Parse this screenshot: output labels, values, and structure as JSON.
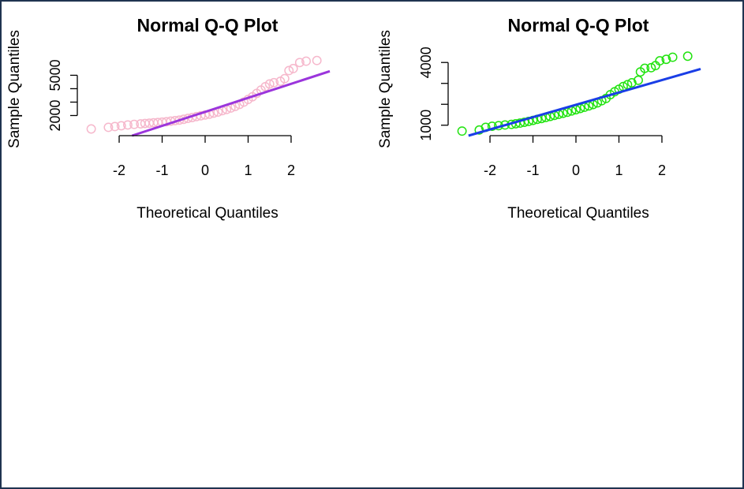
{
  "chart_data": [
    {
      "type": "scatter",
      "title": "Normal Q-Q Plot",
      "xlabel": "Theoretical Quantiles",
      "ylabel": "Sample Quantiles",
      "xlim": [
        -2.9,
        2.9
      ],
      "ylim": [
        500,
        7200
      ],
      "x_ticks": [
        -2,
        -1,
        0,
        1,
        2
      ],
      "y_ticks": [
        2000,
        5000
      ],
      "y_minor_ticks": [
        2000,
        3000,
        4000,
        5000
      ],
      "point_color": "#f6b8cc",
      "line_color": "#9b35dc",
      "reference_line": {
        "x": [
          -1.7,
          2.9
        ],
        "y": [
          500,
          5300
        ]
      },
      "points": [
        {
          "x": -2.65,
          "y": 1000
        },
        {
          "x": -2.25,
          "y": 1120
        },
        {
          "x": -2.1,
          "y": 1180
        },
        {
          "x": -1.95,
          "y": 1240
        },
        {
          "x": -1.8,
          "y": 1300
        },
        {
          "x": -1.65,
          "y": 1340
        },
        {
          "x": -1.5,
          "y": 1380
        },
        {
          "x": -1.4,
          "y": 1410
        },
        {
          "x": -1.3,
          "y": 1430
        },
        {
          "x": -1.2,
          "y": 1460
        },
        {
          "x": -1.1,
          "y": 1480
        },
        {
          "x": -1.0,
          "y": 1510
        },
        {
          "x": -0.9,
          "y": 1540
        },
        {
          "x": -0.8,
          "y": 1580
        },
        {
          "x": -0.7,
          "y": 1620
        },
        {
          "x": -0.6,
          "y": 1660
        },
        {
          "x": -0.5,
          "y": 1720
        },
        {
          "x": -0.4,
          "y": 1790
        },
        {
          "x": -0.3,
          "y": 1850
        },
        {
          "x": -0.2,
          "y": 1920
        },
        {
          "x": -0.1,
          "y": 1980
        },
        {
          "x": 0.0,
          "y": 2040
        },
        {
          "x": 0.1,
          "y": 2100
        },
        {
          "x": 0.2,
          "y": 2180
        },
        {
          "x": 0.3,
          "y": 2260
        },
        {
          "x": 0.4,
          "y": 2360
        },
        {
          "x": 0.5,
          "y": 2450
        },
        {
          "x": 0.6,
          "y": 2560
        },
        {
          "x": 0.7,
          "y": 2680
        },
        {
          "x": 0.8,
          "y": 2830
        },
        {
          "x": 0.9,
          "y": 3000
        },
        {
          "x": 1.0,
          "y": 3200
        },
        {
          "x": 1.1,
          "y": 3400
        },
        {
          "x": 1.2,
          "y": 3650
        },
        {
          "x": 1.3,
          "y": 3900
        },
        {
          "x": 1.4,
          "y": 4150
        },
        {
          "x": 1.5,
          "y": 4350
        },
        {
          "x": 1.6,
          "y": 4450
        },
        {
          "x": 1.75,
          "y": 4550
        },
        {
          "x": 1.85,
          "y": 4750
        },
        {
          "x": 1.95,
          "y": 5350
        },
        {
          "x": 2.05,
          "y": 5500
        },
        {
          "x": 2.2,
          "y": 5950
        },
        {
          "x": 2.35,
          "y": 6050
        },
        {
          "x": 2.6,
          "y": 6100
        }
      ]
    },
    {
      "type": "scatter",
      "title": "Normal Q-Q Plot",
      "xlabel": "Theoretical Quantiles",
      "ylabel": "Sample Quantiles",
      "xlim": [
        -2.9,
        2.9
      ],
      "ylim": [
        500,
        4800
      ],
      "x_ticks": [
        -2,
        -1,
        0,
        1,
        2
      ],
      "y_ticks": [
        1000,
        4000
      ],
      "y_minor_ticks": [
        1000,
        2000,
        3000,
        4000
      ],
      "point_color": "#22e310",
      "line_color": "#1a3ee6",
      "reference_line": {
        "x": [
          -2.5,
          2.9
        ],
        "y": [
          500,
          3690
        ]
      },
      "points": [
        {
          "x": -2.65,
          "y": 720
        },
        {
          "x": -2.25,
          "y": 770
        },
        {
          "x": -2.1,
          "y": 900
        },
        {
          "x": -1.95,
          "y": 950
        },
        {
          "x": -1.8,
          "y": 980
        },
        {
          "x": -1.65,
          "y": 1010
        },
        {
          "x": -1.5,
          "y": 1040
        },
        {
          "x": -1.4,
          "y": 1070
        },
        {
          "x": -1.3,
          "y": 1100
        },
        {
          "x": -1.2,
          "y": 1140
        },
        {
          "x": -1.1,
          "y": 1180
        },
        {
          "x": -1.0,
          "y": 1230
        },
        {
          "x": -0.9,
          "y": 1280
        },
        {
          "x": -0.8,
          "y": 1320
        },
        {
          "x": -0.7,
          "y": 1370
        },
        {
          "x": -0.6,
          "y": 1420
        },
        {
          "x": -0.5,
          "y": 1470
        },
        {
          "x": -0.4,
          "y": 1520
        },
        {
          "x": -0.3,
          "y": 1570
        },
        {
          "x": -0.2,
          "y": 1620
        },
        {
          "x": -0.1,
          "y": 1680
        },
        {
          "x": 0.0,
          "y": 1740
        },
        {
          "x": 0.1,
          "y": 1800
        },
        {
          "x": 0.2,
          "y": 1860
        },
        {
          "x": 0.3,
          "y": 1920
        },
        {
          "x": 0.4,
          "y": 1990
        },
        {
          "x": 0.5,
          "y": 2070
        },
        {
          "x": 0.6,
          "y": 2170
        },
        {
          "x": 0.7,
          "y": 2280
        },
        {
          "x": 0.8,
          "y": 2460
        },
        {
          "x": 0.9,
          "y": 2600
        },
        {
          "x": 1.0,
          "y": 2720
        },
        {
          "x": 1.1,
          "y": 2850
        },
        {
          "x": 1.2,
          "y": 2940
        },
        {
          "x": 1.3,
          "y": 3030
        },
        {
          "x": 1.45,
          "y": 3150
        },
        {
          "x": 1.5,
          "y": 3550
        },
        {
          "x": 1.6,
          "y": 3720
        },
        {
          "x": 1.75,
          "y": 3750
        },
        {
          "x": 1.85,
          "y": 3850
        },
        {
          "x": 1.95,
          "y": 4080
        },
        {
          "x": 2.1,
          "y": 4150
        },
        {
          "x": 2.25,
          "y": 4250
        },
        {
          "x": 2.6,
          "y": 4300
        }
      ]
    }
  ]
}
